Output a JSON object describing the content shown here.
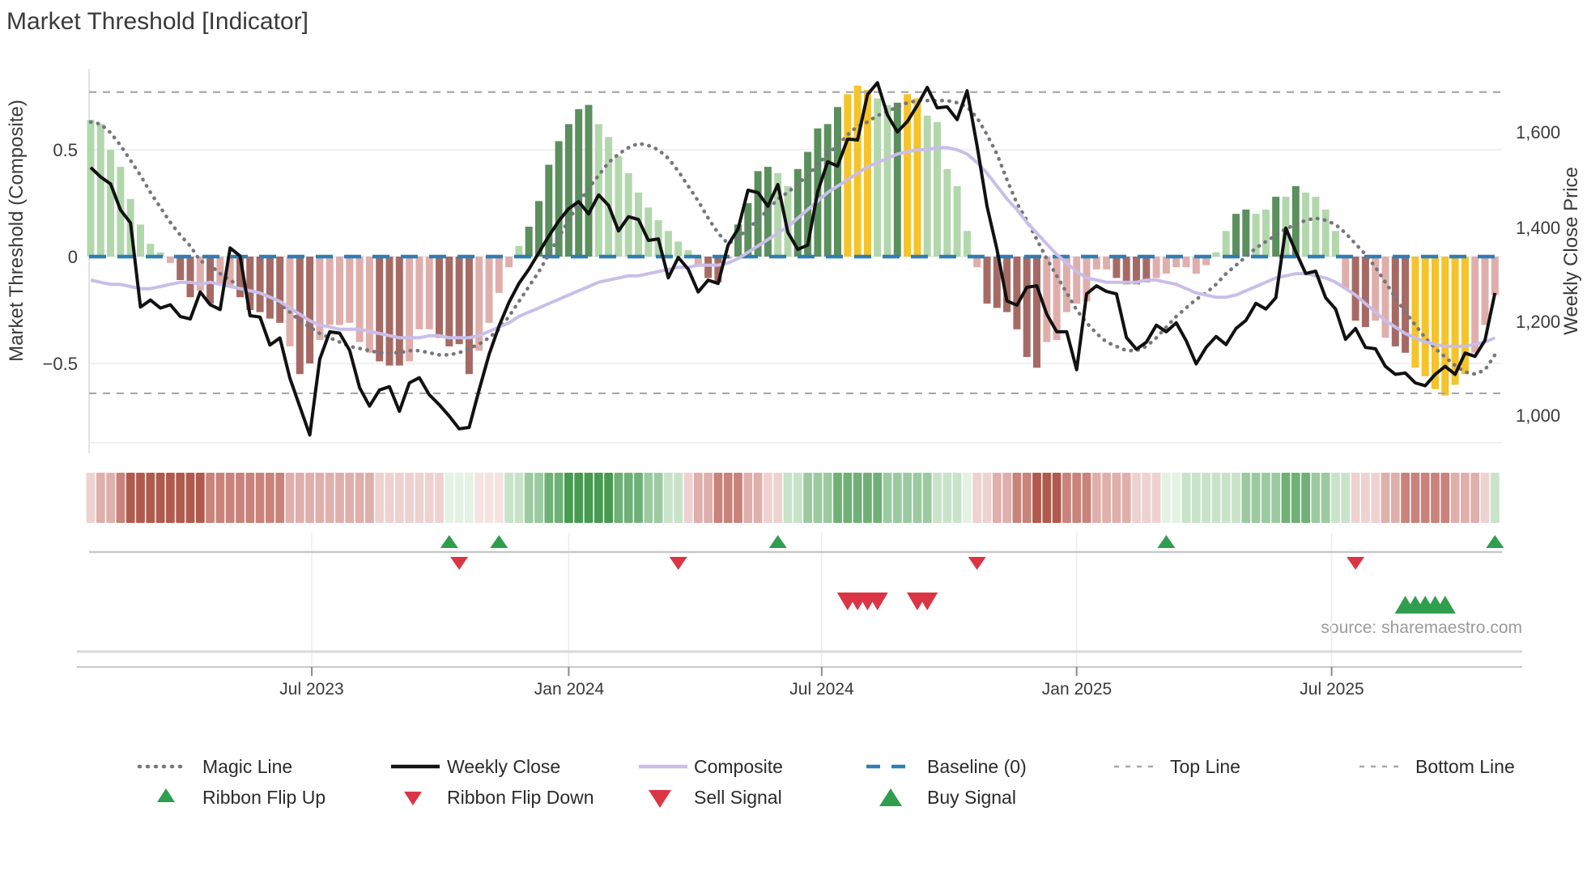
{
  "title": "Market Threshold [Indicator]",
  "source_text": "source: sharemaestro.com",
  "axes": {
    "left": {
      "label": "Market Threshold (Composite)",
      "ticks": [
        "0.5",
        "0",
        "−0.5"
      ]
    },
    "right": {
      "label": "Weekly Close Price",
      "ticks": [
        "1,600",
        "1,400",
        "1,200",
        "1,000"
      ]
    },
    "x": {
      "ticks": [
        "Jul 2023",
        "Jan 2024",
        "Jul 2024",
        "Jan 2025",
        "Jul 2025"
      ]
    }
  },
  "legend": {
    "magic": "Magic Line",
    "close": "Weekly Close",
    "composite": "Composite",
    "baseline": "Baseline (0)",
    "top": "Top Line",
    "bottom": "Bottom Line",
    "flip_up": "Ribbon Flip Up",
    "flip_down": "Ribbon Flip Down",
    "sell": "Sell Signal",
    "buy": "Buy Signal"
  },
  "chart_data": {
    "type": "composite",
    "title": "Market Threshold [Indicator]",
    "x_tick_labels": [
      "Jul 2023",
      "Jan 2024",
      "Jul 2024",
      "Jan 2025",
      "Jul 2025"
    ],
    "x_tick_weeks": [
      22.2,
      48,
      73.4,
      99,
      124.6
    ],
    "y_left_tick_values": [
      0.5,
      0,
      -0.5
    ],
    "y_right_tick_values": [
      1600,
      1400,
      1200,
      1000
    ],
    "top_line": 0.77,
    "bottom_line": -0.64,
    "baseline": 0,
    "bars": [
      [
        0.64,
        "lg"
      ],
      [
        0.62,
        "lg"
      ],
      [
        0.5,
        "lg"
      ],
      [
        0.42,
        "lg"
      ],
      [
        0.27,
        "lg"
      ],
      [
        0.15,
        "lg"
      ],
      [
        0.06,
        "lg"
      ],
      [
        0.02,
        "lg"
      ],
      [
        -0.03,
        "lp"
      ],
      [
        -0.11,
        "dr"
      ],
      [
        -0.19,
        "dr"
      ],
      [
        -0.16,
        "lp"
      ],
      [
        -0.22,
        "dr"
      ],
      [
        -0.13,
        "lp"
      ],
      [
        -0.14,
        "lp"
      ],
      [
        -0.19,
        "dr"
      ],
      [
        -0.25,
        "dr"
      ],
      [
        -0.26,
        "dr"
      ],
      [
        -0.29,
        "dr"
      ],
      [
        -0.31,
        "dr"
      ],
      [
        -0.42,
        "lp"
      ],
      [
        -0.55,
        "dr"
      ],
      [
        -0.5,
        "dr"
      ],
      [
        -0.39,
        "lp"
      ],
      [
        -0.32,
        "lp"
      ],
      [
        -0.32,
        "lp"
      ],
      [
        -0.31,
        "lp"
      ],
      [
        -0.4,
        "lp"
      ],
      [
        -0.45,
        "lp"
      ],
      [
        -0.49,
        "dr"
      ],
      [
        -0.51,
        "dr"
      ],
      [
        -0.51,
        "dr"
      ],
      [
        -0.49,
        "lp"
      ],
      [
        -0.34,
        "lp"
      ],
      [
        -0.34,
        "lp"
      ],
      [
        -0.38,
        "dr"
      ],
      [
        -0.42,
        "dr"
      ],
      [
        -0.41,
        "dr"
      ],
      [
        -0.55,
        "dr"
      ],
      [
        -0.44,
        "lp"
      ],
      [
        -0.31,
        "lp"
      ],
      [
        -0.17,
        "lp"
      ],
      [
        -0.05,
        "lp"
      ],
      [
        0.05,
        "lg"
      ],
      [
        0.14,
        "dg"
      ],
      [
        0.26,
        "dg"
      ],
      [
        0.43,
        "dg"
      ],
      [
        0.54,
        "dg"
      ],
      [
        0.62,
        "dg"
      ],
      [
        0.69,
        "dg"
      ],
      [
        0.71,
        "dg"
      ],
      [
        0.62,
        "lg"
      ],
      [
        0.56,
        "lg"
      ],
      [
        0.47,
        "lg"
      ],
      [
        0.39,
        "lg"
      ],
      [
        0.3,
        "lg"
      ],
      [
        0.23,
        "lg"
      ],
      [
        0.17,
        "lg"
      ],
      [
        0.12,
        "lg"
      ],
      [
        0.07,
        "lg"
      ],
      [
        0.03,
        "lg"
      ],
      [
        -0.04,
        "lp"
      ],
      [
        -0.1,
        "dr"
      ],
      [
        -0.12,
        "dr"
      ],
      [
        -0.01,
        "lp"
      ],
      [
        0.15,
        "dg"
      ],
      [
        0.25,
        "dg"
      ],
      [
        0.4,
        "dg"
      ],
      [
        0.42,
        "dg"
      ],
      [
        0.39,
        "lg"
      ],
      [
        0.33,
        "lg"
      ],
      [
        0.41,
        "dg"
      ],
      [
        0.49,
        "dg"
      ],
      [
        0.6,
        "dg"
      ],
      [
        0.62,
        "dg"
      ],
      [
        0.7,
        "dg"
      ],
      [
        0.76,
        "y"
      ],
      [
        0.8,
        "y"
      ],
      [
        0.78,
        "y"
      ],
      [
        0.74,
        "lg"
      ],
      [
        0.71,
        "lg"
      ],
      [
        0.72,
        "dg"
      ],
      [
        0.76,
        "y"
      ],
      [
        0.74,
        "y"
      ],
      [
        0.66,
        "lg"
      ],
      [
        0.63,
        "lg"
      ],
      [
        0.41,
        "lg"
      ],
      [
        0.33,
        "lg"
      ],
      [
        0.12,
        "lg"
      ],
      [
        -0.05,
        "lp"
      ],
      [
        -0.22,
        "dr"
      ],
      [
        -0.24,
        "dr"
      ],
      [
        -0.26,
        "dr"
      ],
      [
        -0.34,
        "dr"
      ],
      [
        -0.47,
        "dr"
      ],
      [
        -0.52,
        "dr"
      ],
      [
        -0.4,
        "lp"
      ],
      [
        -0.39,
        "lp"
      ],
      [
        -0.26,
        "lp"
      ],
      [
        -0.22,
        "lp"
      ],
      [
        -0.21,
        "lp"
      ],
      [
        -0.06,
        "lp"
      ],
      [
        -0.06,
        "lp"
      ],
      [
        -0.1,
        "dr"
      ],
      [
        -0.13,
        "dr"
      ],
      [
        -0.13,
        "dr"
      ],
      [
        -0.12,
        "dr"
      ],
      [
        -0.1,
        "lp"
      ],
      [
        -0.08,
        "lp"
      ],
      [
        -0.05,
        "lp"
      ],
      [
        -0.05,
        "lp"
      ],
      [
        -0.08,
        "lp"
      ],
      [
        -0.04,
        "lp"
      ],
      [
        0.02,
        "lg"
      ],
      [
        0.12,
        "lg"
      ],
      [
        0.2,
        "dg"
      ],
      [
        0.22,
        "dg"
      ],
      [
        0.2,
        "lg"
      ],
      [
        0.22,
        "lg"
      ],
      [
        0.28,
        "dg"
      ],
      [
        0.28,
        "lg"
      ],
      [
        0.33,
        "dg"
      ],
      [
        0.3,
        "lg"
      ],
      [
        0.28,
        "lg"
      ],
      [
        0.22,
        "lg"
      ],
      [
        0.12,
        "lg"
      ],
      [
        -0.15,
        "lp"
      ],
      [
        -0.3,
        "dr"
      ],
      [
        -0.33,
        "dr"
      ],
      [
        -0.3,
        "lp"
      ],
      [
        -0.38,
        "lp"
      ],
      [
        -0.42,
        "dr"
      ],
      [
        -0.45,
        "dr"
      ],
      [
        -0.52,
        "y"
      ],
      [
        -0.56,
        "y"
      ],
      [
        -0.62,
        "y"
      ],
      [
        -0.65,
        "y"
      ],
      [
        -0.6,
        "y"
      ],
      [
        -0.55,
        "y"
      ],
      [
        -0.45,
        "lp"
      ],
      [
        -0.32,
        "lp"
      ],
      [
        -0.18,
        "lp"
      ]
    ],
    "close": [
      1525,
      1505,
      1490,
      1435,
      1408,
      1230,
      1245,
      1228,
      1235,
      1210,
      1205,
      1262,
      1235,
      1225,
      1355,
      1338,
      1212,
      1209,
      1150,
      1165,
      1080,
      1020,
      960,
      1120,
      1178,
      1175,
      1139,
      1060,
      1021,
      1055,
      1062,
      1010,
      1070,
      1081,
      1045,
      1024,
      1000,
      973,
      976,
      1055,
      1130,
      1190,
      1240,
      1280,
      1310,
      1345,
      1380,
      1412,
      1438,
      1453,
      1427,
      1467,
      1445,
      1391,
      1421,
      1415,
      1371,
      1374,
      1292,
      1335,
      1310,
      1262,
      1287,
      1280,
      1361,
      1395,
      1477,
      1472,
      1443,
      1489,
      1388,
      1352,
      1361,
      1474,
      1537,
      1528,
      1585,
      1583,
      1679,
      1704,
      1636,
      1600,
      1622,
      1656,
      1694,
      1651,
      1653,
      1626,
      1687,
      1571,
      1443,
      1352,
      1243,
      1234,
      1272,
      1275,
      1215,
      1178,
      1178,
      1098,
      1258,
      1275,
      1263,
      1258,
      1166,
      1141,
      1156,
      1192,
      1178,
      1197,
      1159,
      1110,
      1145,
      1168,
      1151,
      1185,
      1202,
      1238,
      1226,
      1250,
      1397,
      1347,
      1301,
      1306,
      1250,
      1226,
      1162,
      1185,
      1145,
      1142,
      1105,
      1088,
      1091,
      1070,
      1064,
      1088,
      1105,
      1088,
      1133,
      1126,
      1160,
      1260
    ],
    "magic": [
      0.63,
      0.62,
      0.58,
      0.52,
      0.45,
      0.38,
      0.3,
      0.23,
      0.16,
      0.1,
      0.05,
      -0.02,
      -0.04,
      -0.08,
      -0.11,
      -0.14,
      -0.16,
      -0.17,
      -0.19,
      -0.22,
      -0.26,
      -0.3,
      -0.33,
      -0.36,
      -0.38,
      -0.4,
      -0.42,
      -0.43,
      -0.44,
      -0.45,
      -0.45,
      -0.45,
      -0.44,
      -0.44,
      -0.45,
      -0.46,
      -0.46,
      -0.45,
      -0.43,
      -0.41,
      -0.38,
      -0.34,
      -0.28,
      -0.21,
      -0.14,
      -0.07,
      0.01,
      0.09,
      0.17,
      0.25,
      0.32,
      0.38,
      0.44,
      0.48,
      0.51,
      0.53,
      0.52,
      0.5,
      0.46,
      0.4,
      0.33,
      0.26,
      0.18,
      0.11,
      0.06,
      0.09,
      0.13,
      0.17,
      0.22,
      0.27,
      0.3,
      0.34,
      0.38,
      0.43,
      0.48,
      0.52,
      0.57,
      0.61,
      0.63,
      0.66,
      0.68,
      0.7,
      0.72,
      0.73,
      0.73,
      0.73,
      0.73,
      0.72,
      0.7,
      0.65,
      0.57,
      0.48,
      0.36,
      0.25,
      0.17,
      0.08,
      -0.01,
      -0.09,
      -0.17,
      -0.25,
      -0.31,
      -0.36,
      -0.4,
      -0.42,
      -0.44,
      -0.44,
      -0.42,
      -0.38,
      -0.33,
      -0.28,
      -0.24,
      -0.2,
      -0.17,
      -0.13,
      -0.08,
      -0.04,
      0.0,
      0.04,
      0.07,
      0.1,
      0.13,
      0.15,
      0.17,
      0.18,
      0.17,
      0.15,
      0.11,
      0.06,
      0.01,
      -0.05,
      -0.12,
      -0.19,
      -0.26,
      -0.32,
      -0.38,
      -0.43,
      -0.47,
      -0.51,
      -0.54,
      -0.55,
      -0.53,
      -0.46
    ],
    "composite": [
      -0.11,
      -0.12,
      -0.13,
      -0.13,
      -0.14,
      -0.15,
      -0.15,
      -0.14,
      -0.13,
      -0.12,
      -0.12,
      -0.13,
      -0.12,
      -0.13,
      -0.14,
      -0.15,
      -0.16,
      -0.17,
      -0.19,
      -0.21,
      -0.24,
      -0.27,
      -0.3,
      -0.32,
      -0.33,
      -0.34,
      -0.34,
      -0.34,
      -0.35,
      -0.36,
      -0.37,
      -0.38,
      -0.38,
      -0.38,
      -0.37,
      -0.37,
      -0.38,
      -0.38,
      -0.38,
      -0.37,
      -0.35,
      -0.33,
      -0.31,
      -0.28,
      -0.26,
      -0.24,
      -0.22,
      -0.2,
      -0.18,
      -0.16,
      -0.14,
      -0.12,
      -0.11,
      -0.1,
      -0.09,
      -0.09,
      -0.08,
      -0.07,
      -0.06,
      -0.05,
      -0.05,
      -0.04,
      -0.04,
      -0.04,
      -0.03,
      -0.01,
      0.02,
      0.05,
      0.08,
      0.11,
      0.14,
      0.18,
      0.22,
      0.26,
      0.3,
      0.33,
      0.36,
      0.39,
      0.42,
      0.44,
      0.46,
      0.48,
      0.49,
      0.5,
      0.5,
      0.51,
      0.51,
      0.5,
      0.48,
      0.44,
      0.39,
      0.33,
      0.27,
      0.22,
      0.16,
      0.11,
      0.06,
      0.01,
      -0.03,
      -0.07,
      -0.1,
      -0.11,
      -0.12,
      -0.12,
      -0.12,
      -0.12,
      -0.11,
      -0.11,
      -0.12,
      -0.13,
      -0.15,
      -0.17,
      -0.18,
      -0.19,
      -0.19,
      -0.18,
      -0.16,
      -0.14,
      -0.12,
      -0.1,
      -0.09,
      -0.08,
      -0.08,
      -0.09,
      -0.1,
      -0.12,
      -0.15,
      -0.18,
      -0.22,
      -0.26,
      -0.3,
      -0.33,
      -0.36,
      -0.38,
      -0.4,
      -0.41,
      -0.42,
      -0.42,
      -0.42,
      -0.41,
      -0.4,
      -0.38
    ],
    "ribbon": [
      -1,
      -2,
      -2,
      -3,
      -4,
      -4,
      -4,
      -4,
      -4,
      -4,
      -4,
      -4,
      -3,
      -3,
      -3,
      -3,
      -3,
      -3,
      -3,
      -3,
      -2,
      -2,
      -2,
      -2,
      -2,
      -2,
      -2,
      -2,
      -2,
      -1,
      -1,
      -1,
      -1,
      -1,
      -1,
      -1,
      0.5,
      0.5,
      0.5,
      -0.5,
      -0.5,
      -0.5,
      1,
      1,
      2,
      2,
      3,
      3,
      4,
      4,
      4,
      4,
      4,
      3,
      3,
      3,
      2,
      2,
      1,
      1,
      -1,
      -2,
      -2,
      -3,
      -3,
      -3,
      -2,
      -2,
      -1,
      -1,
      1,
      1,
      2,
      2,
      2,
      3,
      3,
      3,
      3,
      3,
      2,
      2,
      2,
      2,
      2,
      1,
      1,
      1,
      0.5,
      -1,
      -1,
      -2,
      -2,
      -3,
      -3,
      -4,
      -4,
      -4,
      -3,
      -3,
      -3,
      -2,
      -2,
      -2,
      -2,
      -1,
      -1,
      -1,
      0.5,
      0.5,
      1,
      1,
      1,
      1,
      1,
      1,
      2,
      2,
      2,
      2,
      3,
      3,
      3,
      2,
      2,
      1,
      1,
      -1,
      -1,
      -1,
      -2,
      -2,
      -3,
      -3,
      -3,
      -3,
      -3,
      -2,
      -2,
      -2,
      -1,
      1
    ],
    "signals": {
      "flip_up_weeks": [
        36,
        41,
        69,
        108,
        141
      ],
      "flip_down_weeks": [
        37,
        59,
        89,
        127
      ],
      "sell_weeks": [
        76,
        77,
        78,
        79,
        83,
        84
      ],
      "buy_weeks": [
        132,
        133,
        134,
        135,
        136
      ]
    },
    "colors": {
      "bar": {
        "lg": "#b3d7ac",
        "dg": "#5b8f5e",
        "y": "#f5c32a",
        "lp": "#dfaeab",
        "dr": "#a66a64"
      },
      "ribbon": {
        "4": "#479a50",
        "3": "#6fb076",
        "2": "#9ccaa0",
        "1": "#c8e3c9",
        "0.5": "#e4f2e4",
        "-0.5": "#f5e3e2",
        "-1": "#eed2d0",
        "-2": "#dfafab",
        "-3": "#c9837b",
        "-4": "#b05a4e"
      },
      "close": "#111111",
      "magic": "#76767e",
      "composite": "#c9bee9",
      "baseline": "#2e7eb5",
      "threshold_lines": "#a8a8a8",
      "signal_up": "#2f9e4e",
      "signal_down": "#db3545",
      "grid": "#ececf2",
      "axis_line": "#c8c8c8"
    }
  }
}
